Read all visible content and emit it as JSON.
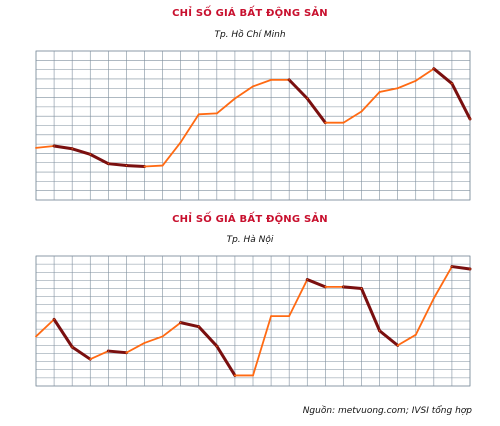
{
  "charts": [
    {
      "title": "CHỈ SỐ GIÁ BẤT ĐỘNG SẢN",
      "subtitle": "Tp. Hồ Chí Minh"
    },
    {
      "title": "CHỈ SỐ GIÁ BẤT ĐỘNG SẢN",
      "subtitle": "Tp. Hà Nội"
    }
  ],
  "source": "Nguồn: metvuong.com; IVSI tổng hợp",
  "colors": {
    "title": "#c8102e",
    "rise": "#ff6a13",
    "fall": "#7a0f0f",
    "grid": "#7f8f9e",
    "tick": "#c8102e"
  },
  "chart_data": [
    {
      "type": "line",
      "title": "CHỈ SỐ GIÁ BẤT ĐỘNG SẢN",
      "subtitle": "Tp. Hồ Chí Minh",
      "ylim": [
        0,
        16
      ],
      "grid": true,
      "y_ticks": [
        "",
        "",
        "",
        "",
        "",
        "",
        "",
        "",
        "",
        "",
        "",
        "",
        "",
        "",
        "",
        "",
        ""
      ],
      "x_ticks": [
        "",
        "",
        "",
        "",
        "",
        "",
        "",
        "",
        "",
        "",
        "",
        "",
        "",
        "",
        "",
        "",
        "",
        "",
        "",
        "",
        "",
        "",
        "",
        "",
        ""
      ],
      "series": [
        {
          "values": [
            5.6,
            5.8,
            5.5,
            4.9,
            3.9,
            3.7,
            3.6,
            3.7,
            6.2,
            9.2,
            9.3,
            10.9,
            12.2,
            12.9,
            12.9,
            10.9,
            8.3,
            8.3,
            9.5,
            11.6,
            12.0,
            12.8,
            14.1,
            12.5,
            8.7
          ]
        }
      ]
    },
    {
      "type": "line",
      "title": "CHỈ SỐ GIÁ BẤT ĐỘNG SẢN",
      "subtitle": "Tp. Hà Nội",
      "ylim": [
        0,
        16
      ],
      "grid": true,
      "y_ticks": [
        "",
        "",
        "",
        "",
        "",
        "",
        "",
        "",
        "",
        "",
        "",
        "",
        "",
        "",
        "",
        "",
        ""
      ],
      "x_ticks": [
        "",
        "",
        "",
        "",
        "",
        "",
        "",
        "",
        "",
        "",
        "",
        "",
        "",
        "",
        "",
        "",
        "",
        "",
        "",
        "",
        "",
        "",
        "",
        "",
        ""
      ],
      "series": [
        {
          "values": [
            6.1,
            8.2,
            4.8,
            3.3,
            4.3,
            4.1,
            5.3,
            6.1,
            7.8,
            7.3,
            4.9,
            1.3,
            1.3,
            8.6,
            8.6,
            13.1,
            12.2,
            12.2,
            12.0,
            6.8,
            5.0,
            6.3,
            10.8,
            14.7,
            14.4
          ]
        }
      ]
    }
  ]
}
